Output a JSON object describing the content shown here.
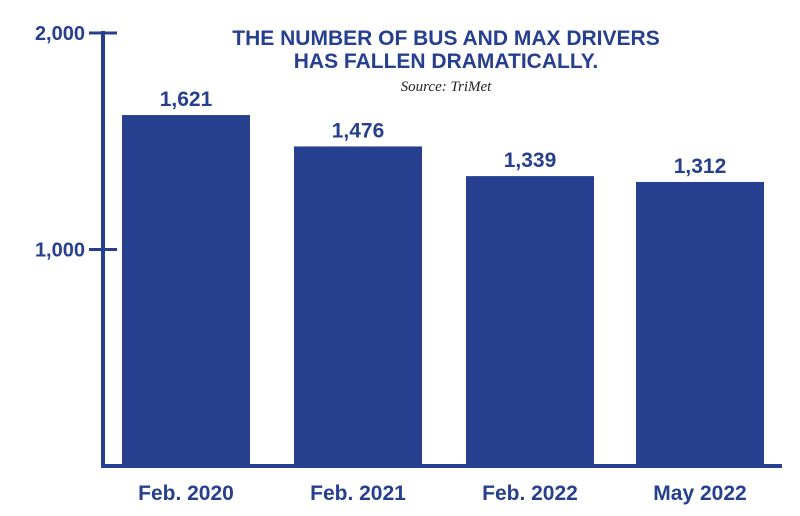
{
  "chart_data": {
    "type": "bar",
    "title_lines": [
      "THE NUMBER OF BUS AND MAX DRIVERS",
      "HAS FALLEN DRAMATICALLY."
    ],
    "subtitle": "Source: TriMet",
    "categories": [
      "Feb. 2020",
      "Feb. 2021",
      "Feb. 2022",
      "May 2022"
    ],
    "values": [
      1621,
      1476,
      1339,
      1312
    ],
    "value_labels": [
      "1,621",
      "1,476",
      "1,339",
      "1,312"
    ],
    "ylim": [
      0,
      2000
    ],
    "yticks": [
      1000,
      2000
    ],
    "ytick_labels": [
      "1,000",
      "2,000"
    ],
    "xlabel": "",
    "ylabel": "",
    "grid": false,
    "colors": {
      "bar": "#263f8e",
      "axis": "#263f8e",
      "text": "#263f8e"
    }
  }
}
